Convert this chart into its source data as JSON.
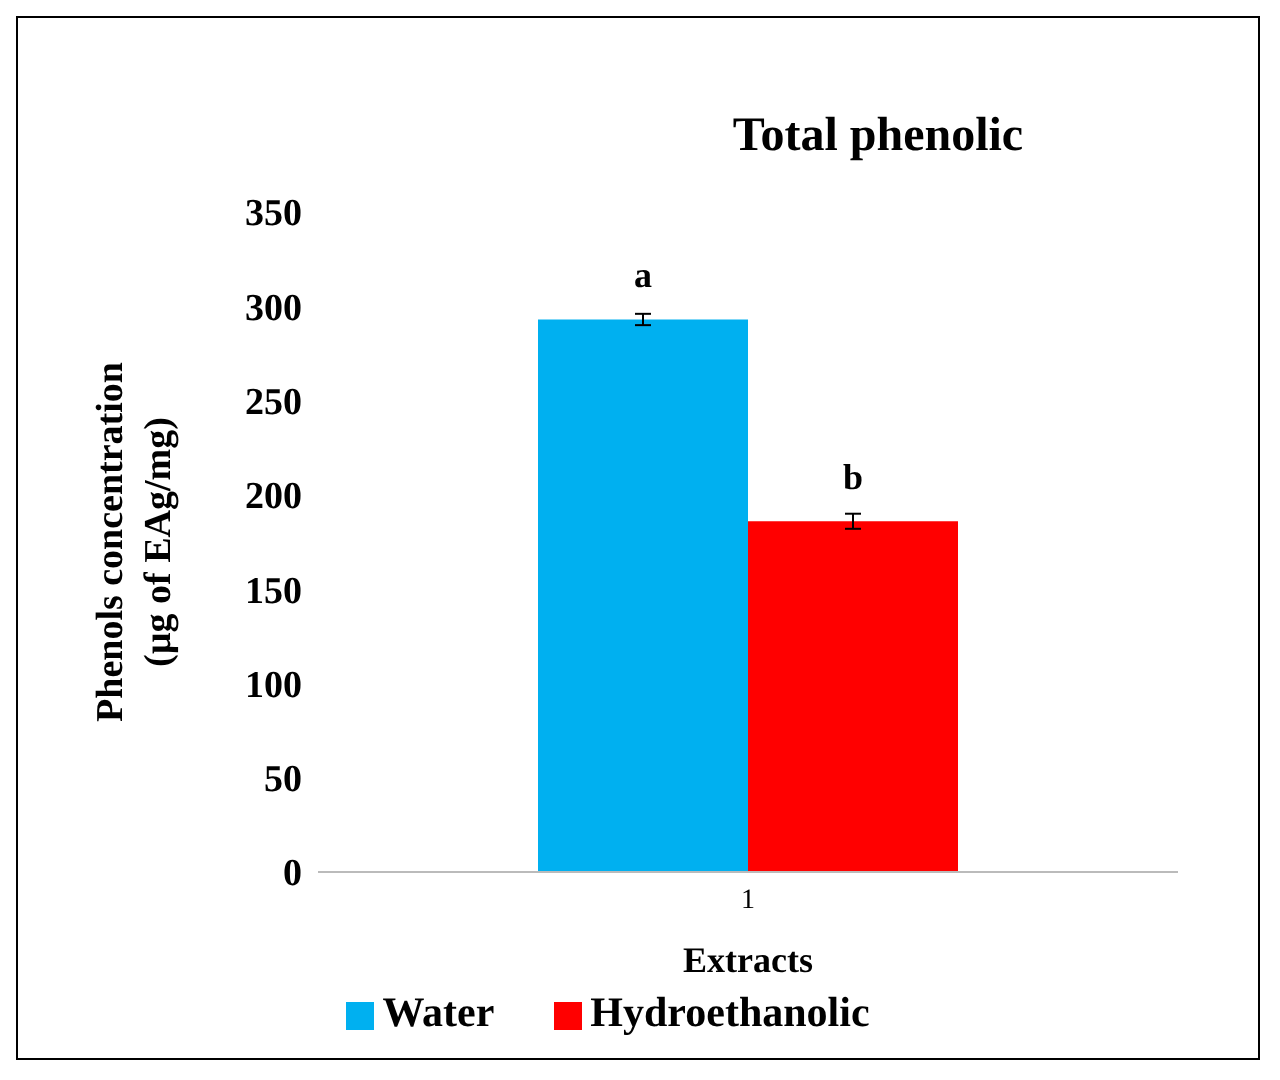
{
  "chart_data": {
    "type": "bar",
    "title": "Total phenolic",
    "xlabel": "Extracts",
    "ylabel": "Phenols concentration (µg of EAg/mg)",
    "categories": [
      "1"
    ],
    "series": [
      {
        "name": "Water",
        "color": "#00b0f0",
        "values": [
          293
        ],
        "errors": [
          3
        ]
      },
      {
        "name": "Hydroethanolic",
        "color": "#ff0000",
        "values": [
          186
        ],
        "errors": [
          4
        ]
      }
    ],
    "annotations": [
      {
        "text": "a",
        "x": "1",
        "y": 293
      },
      {
        "text": "b",
        "x": "1",
        "y": 186
      }
    ],
    "ylim": [
      0,
      350
    ],
    "yticks": [
      0,
      50,
      100,
      150,
      200,
      250,
      300,
      350
    ],
    "grid": false,
    "legend": "bottom"
  }
}
